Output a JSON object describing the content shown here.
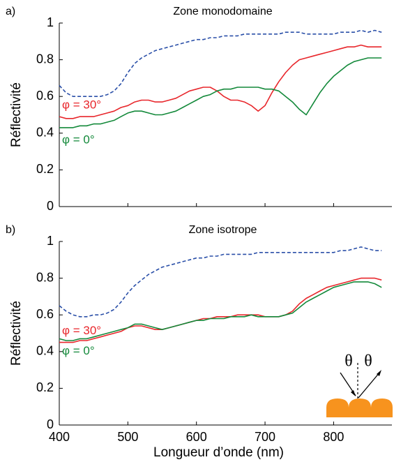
{
  "chart_data": [
    {
      "type": "line",
      "panel_label": "a)",
      "title": "Zone monodomaine",
      "ylabel": "Réflectivité",
      "x": [
        400,
        410,
        420,
        430,
        440,
        450,
        460,
        470,
        480,
        490,
        500,
        510,
        520,
        530,
        540,
        550,
        560,
        570,
        580,
        590,
        600,
        610,
        620,
        630,
        640,
        650,
        660,
        670,
        680,
        690,
        700,
        710,
        720,
        730,
        740,
        750,
        760,
        770,
        780,
        790,
        800,
        810,
        820,
        830,
        840,
        850,
        860,
        870
      ],
      "xlim": [
        400,
        885
      ],
      "ylim": [
        0,
        1
      ],
      "xticks": [
        400,
        500,
        600,
        700,
        800
      ],
      "yticks": [
        0,
        0.2,
        0.4,
        0.6,
        0.8,
        1
      ],
      "series": [
        {
          "color": "#2a4fa8",
          "dashed": true,
          "values": [
            0.66,
            0.62,
            0.6,
            0.6,
            0.6,
            0.6,
            0.6,
            0.61,
            0.63,
            0.67,
            0.73,
            0.78,
            0.81,
            0.83,
            0.85,
            0.86,
            0.87,
            0.88,
            0.89,
            0.9,
            0.91,
            0.91,
            0.92,
            0.92,
            0.93,
            0.93,
            0.93,
            0.94,
            0.94,
            0.94,
            0.94,
            0.94,
            0.94,
            0.95,
            0.95,
            0.95,
            0.94,
            0.94,
            0.94,
            0.94,
            0.94,
            0.95,
            0.95,
            0.95,
            0.96,
            0.95,
            0.96,
            0.95
          ]
        },
        {
          "name": "φ = 30°",
          "color": "#e8262b",
          "dashed": false,
          "values": [
            0.49,
            0.48,
            0.48,
            0.49,
            0.49,
            0.49,
            0.5,
            0.51,
            0.52,
            0.54,
            0.55,
            0.57,
            0.58,
            0.58,
            0.57,
            0.57,
            0.58,
            0.59,
            0.61,
            0.63,
            0.64,
            0.65,
            0.65,
            0.63,
            0.6,
            0.58,
            0.58,
            0.57,
            0.55,
            0.52,
            0.55,
            0.62,
            0.68,
            0.73,
            0.77,
            0.8,
            0.81,
            0.82,
            0.83,
            0.84,
            0.85,
            0.86,
            0.87,
            0.87,
            0.88,
            0.87,
            0.87,
            0.87
          ]
        },
        {
          "name": "φ = 0°",
          "color": "#13893a",
          "dashed": false,
          "values": [
            0.43,
            0.43,
            0.43,
            0.44,
            0.44,
            0.45,
            0.45,
            0.46,
            0.47,
            0.49,
            0.51,
            0.52,
            0.52,
            0.51,
            0.5,
            0.5,
            0.51,
            0.52,
            0.54,
            0.56,
            0.58,
            0.6,
            0.61,
            0.63,
            0.64,
            0.64,
            0.65,
            0.65,
            0.65,
            0.65,
            0.64,
            0.64,
            0.63,
            0.6,
            0.57,
            0.53,
            0.5,
            0.56,
            0.62,
            0.67,
            0.71,
            0.74,
            0.77,
            0.79,
            0.8,
            0.81,
            0.81,
            0.81
          ]
        }
      ]
    },
    {
      "type": "line",
      "panel_label": "b)",
      "title": "Zone isotrope",
      "ylabel": "Réflectivité",
      "xlabel": "Longueur d’onde (nm)",
      "x": [
        400,
        410,
        420,
        430,
        440,
        450,
        460,
        470,
        480,
        490,
        500,
        510,
        520,
        530,
        540,
        550,
        560,
        570,
        580,
        590,
        600,
        610,
        620,
        630,
        640,
        650,
        660,
        670,
        680,
        690,
        700,
        710,
        720,
        730,
        740,
        750,
        760,
        770,
        780,
        790,
        800,
        810,
        820,
        830,
        840,
        850,
        860,
        870
      ],
      "xlim": [
        400,
        885
      ],
      "ylim": [
        0,
        1
      ],
      "xticks": [
        400,
        500,
        600,
        700,
        800
      ],
      "yticks": [
        0,
        0.2,
        0.4,
        0.6,
        0.8,
        1
      ],
      "annotations": [
        "θ",
        "θ"
      ],
      "series": [
        {
          "color": "#2a4fa8",
          "dashed": true,
          "values": [
            0.65,
            0.62,
            0.6,
            0.59,
            0.59,
            0.6,
            0.6,
            0.61,
            0.63,
            0.67,
            0.72,
            0.76,
            0.79,
            0.82,
            0.84,
            0.86,
            0.87,
            0.88,
            0.89,
            0.9,
            0.91,
            0.91,
            0.92,
            0.92,
            0.93,
            0.93,
            0.93,
            0.93,
            0.93,
            0.94,
            0.94,
            0.94,
            0.94,
            0.94,
            0.94,
            0.94,
            0.94,
            0.94,
            0.94,
            0.94,
            0.94,
            0.95,
            0.95,
            0.96,
            0.97,
            0.96,
            0.95,
            0.95
          ]
        },
        {
          "name": "φ = 30°",
          "color": "#e8262b",
          "dashed": false,
          "values": [
            0.45,
            0.45,
            0.45,
            0.46,
            0.46,
            0.47,
            0.48,
            0.49,
            0.5,
            0.51,
            0.53,
            0.54,
            0.54,
            0.53,
            0.52,
            0.52,
            0.53,
            0.54,
            0.55,
            0.56,
            0.57,
            0.58,
            0.58,
            0.59,
            0.59,
            0.59,
            0.6,
            0.6,
            0.6,
            0.6,
            0.59,
            0.59,
            0.59,
            0.6,
            0.62,
            0.66,
            0.69,
            0.71,
            0.73,
            0.75,
            0.76,
            0.77,
            0.78,
            0.79,
            0.8,
            0.8,
            0.8,
            0.79
          ]
        },
        {
          "name": "φ = 0°",
          "color": "#13893a",
          "dashed": false,
          "values": [
            0.47,
            0.46,
            0.46,
            0.47,
            0.47,
            0.48,
            0.49,
            0.5,
            0.51,
            0.52,
            0.53,
            0.55,
            0.55,
            0.54,
            0.53,
            0.52,
            0.53,
            0.54,
            0.55,
            0.56,
            0.57,
            0.57,
            0.58,
            0.58,
            0.58,
            0.59,
            0.59,
            0.59,
            0.6,
            0.59,
            0.59,
            0.59,
            0.59,
            0.6,
            0.61,
            0.64,
            0.67,
            0.69,
            0.71,
            0.73,
            0.75,
            0.76,
            0.77,
            0.78,
            0.78,
            0.78,
            0.77,
            0.75
          ]
        }
      ]
    }
  ]
}
